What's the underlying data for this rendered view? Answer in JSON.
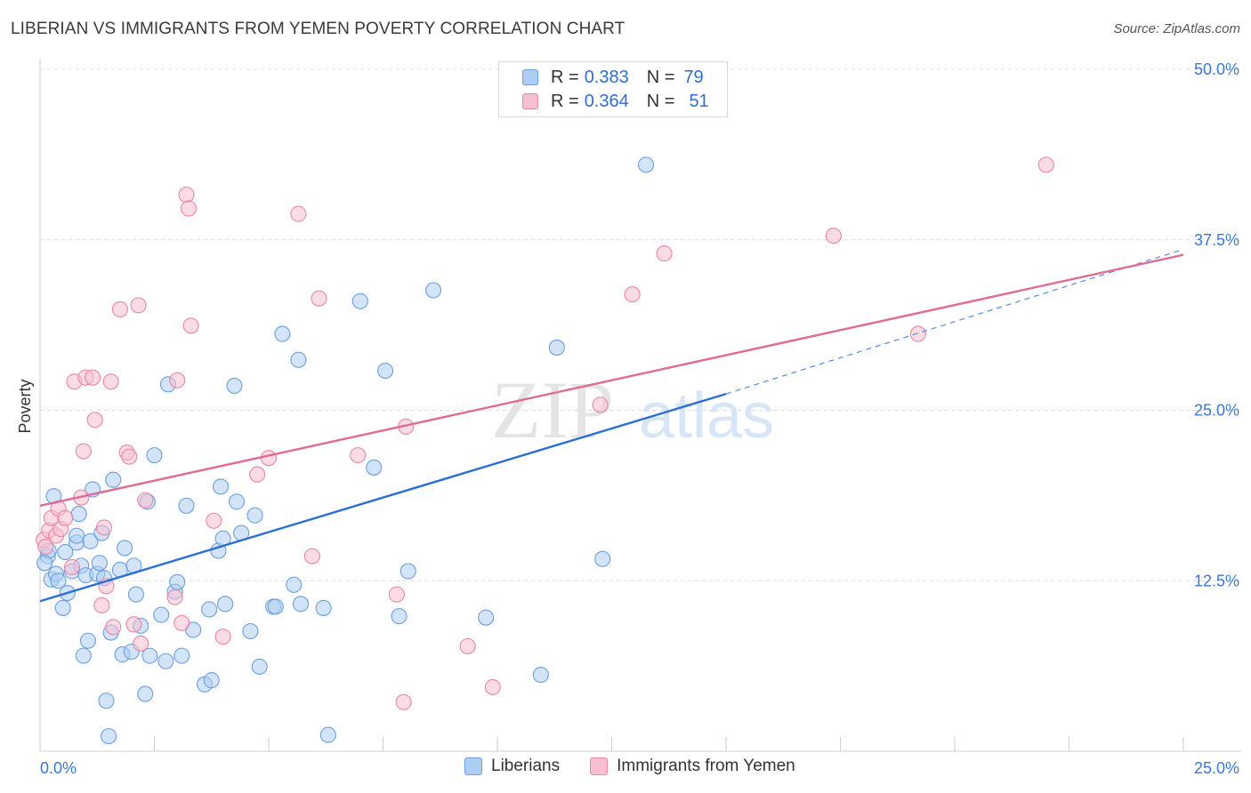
{
  "title": "LIBERIAN VS IMMIGRANTS FROM YEMEN POVERTY CORRELATION CHART",
  "source": "Source: ZipAtlas.com",
  "watermark": {
    "zip": "ZIP",
    "atlas": "atlas"
  },
  "legend_top": [
    {
      "r_label": "R =",
      "r_value": "0.383",
      "n_label": "N =",
      "n_value": "79"
    },
    {
      "r_label": "R =",
      "r_value": "0.364",
      "n_label": "N =",
      "n_value": "51"
    }
  ],
  "legend_bottom": [
    {
      "label": "Liberians"
    },
    {
      "label": "Immigrants from Yemen"
    }
  ],
  "colors": {
    "blue_fill": "#aecdf3",
    "blue_stroke": "#6a9fe0",
    "blue_line": "#2a6fd1",
    "pink_fill": "#f7bfd0",
    "pink_stroke": "#e886a6",
    "pink_line": "#e06a93",
    "tick_label": "#3b78d4",
    "grid": "#dcdcdc"
  },
  "chart_data": {
    "type": "scatter",
    "ylabel": "Poverty",
    "xlim": [
      0,
      25
    ],
    "ylim": [
      0,
      50
    ],
    "x_tick_labels": [
      {
        "value": 0,
        "label": "0.0%"
      },
      {
        "value": 25,
        "label": "25.0%"
      }
    ],
    "y_tick_labels": [
      {
        "value": 12.5,
        "label": "12.5%"
      },
      {
        "value": 25,
        "label": "25.0%"
      },
      {
        "value": 37.5,
        "label": "37.5%"
      },
      {
        "value": 50,
        "label": "50.0%"
      }
    ],
    "series": [
      {
        "name": "Liberians",
        "trend": {
          "x0": 0,
          "y0": 11.0,
          "x1": 15.0,
          "y1": 26.2,
          "dash_x1": 25.0,
          "dash_y1": 36.8
        },
        "points": [
          [
            0.17,
            14.3
          ],
          [
            0.19,
            14.7
          ],
          [
            0.25,
            12.6
          ],
          [
            0.3,
            18.7
          ],
          [
            0.35,
            13.0
          ],
          [
            0.4,
            12.5
          ],
          [
            0.5,
            10.5
          ],
          [
            0.55,
            14.6
          ],
          [
            0.6,
            11.6
          ],
          [
            0.7,
            13.2
          ],
          [
            0.8,
            15.3
          ],
          [
            0.8,
            15.8
          ],
          [
            0.85,
            17.4
          ],
          [
            0.9,
            13.6
          ],
          [
            0.95,
            7.0
          ],
          [
            1.0,
            12.9
          ],
          [
            1.05,
            8.1
          ],
          [
            1.1,
            15.4
          ],
          [
            1.15,
            19.2
          ],
          [
            1.25,
            13.0
          ],
          [
            1.3,
            13.8
          ],
          [
            1.35,
            16.0
          ],
          [
            1.4,
            12.7
          ],
          [
            1.45,
            3.7
          ],
          [
            1.5,
            1.1
          ],
          [
            1.55,
            8.7
          ],
          [
            1.6,
            19.9
          ],
          [
            1.75,
            13.3
          ],
          [
            1.8,
            7.1
          ],
          [
            1.85,
            14.9
          ],
          [
            2.0,
            7.3
          ],
          [
            2.05,
            13.6
          ],
          [
            2.1,
            11.5
          ],
          [
            2.2,
            9.2
          ],
          [
            2.35,
            18.3
          ],
          [
            2.4,
            7.0
          ],
          [
            2.5,
            21.7
          ],
          [
            2.65,
            10.0
          ],
          [
            2.75,
            6.6
          ],
          [
            2.8,
            26.9
          ],
          [
            2.95,
            11.7
          ],
          [
            3.0,
            12.4
          ],
          [
            3.1,
            7.0
          ],
          [
            3.2,
            18.0
          ],
          [
            3.35,
            8.9
          ],
          [
            3.6,
            4.9
          ],
          [
            3.7,
            10.4
          ],
          [
            3.75,
            5.2
          ],
          [
            3.9,
            14.7
          ],
          [
            3.95,
            19.4
          ],
          [
            4.0,
            15.6
          ],
          [
            4.05,
            10.8
          ],
          [
            4.25,
            26.8
          ],
          [
            4.3,
            18.3
          ],
          [
            4.4,
            16.0
          ],
          [
            4.6,
            8.8
          ],
          [
            4.7,
            17.3
          ],
          [
            4.8,
            6.2
          ],
          [
            5.1,
            10.6
          ],
          [
            5.15,
            10.6
          ],
          [
            5.3,
            30.6
          ],
          [
            5.55,
            12.2
          ],
          [
            5.65,
            28.7
          ],
          [
            5.7,
            10.8
          ],
          [
            6.3,
            1.2
          ],
          [
            7.0,
            33.0
          ],
          [
            7.3,
            20.8
          ],
          [
            7.55,
            27.9
          ],
          [
            7.85,
            9.9
          ],
          [
            8.05,
            13.2
          ],
          [
            8.6,
            33.8
          ],
          [
            9.75,
            9.8
          ],
          [
            10.95,
            5.6
          ],
          [
            11.3,
            29.6
          ],
          [
            13.25,
            43.0
          ],
          [
            12.3,
            14.1
          ],
          [
            6.2,
            10.5
          ],
          [
            2.3,
            4.2
          ],
          [
            0.1,
            13.8
          ]
        ]
      },
      {
        "name": "Immigrants from Yemen",
        "trend": {
          "x0": 0,
          "y0": 18.0,
          "x1": 25.0,
          "y1": 36.4
        },
        "points": [
          [
            0.08,
            15.5
          ],
          [
            0.12,
            15.0
          ],
          [
            0.2,
            16.2
          ],
          [
            0.25,
            17.1
          ],
          [
            0.35,
            15.8
          ],
          [
            0.4,
            17.8
          ],
          [
            0.45,
            16.3
          ],
          [
            0.55,
            17.1
          ],
          [
            0.7,
            13.5
          ],
          [
            0.75,
            27.1
          ],
          [
            0.9,
            18.6
          ],
          [
            0.95,
            22.0
          ],
          [
            1.0,
            27.4
          ],
          [
            1.15,
            27.4
          ],
          [
            1.2,
            24.3
          ],
          [
            1.35,
            10.7
          ],
          [
            1.4,
            16.4
          ],
          [
            1.45,
            12.1
          ],
          [
            1.55,
            27.1
          ],
          [
            1.6,
            9.1
          ],
          [
            1.75,
            32.4
          ],
          [
            1.9,
            21.9
          ],
          [
            1.95,
            21.6
          ],
          [
            2.05,
            9.3
          ],
          [
            2.15,
            32.7
          ],
          [
            2.2,
            7.9
          ],
          [
            2.3,
            18.4
          ],
          [
            2.95,
            11.3
          ],
          [
            3.0,
            27.2
          ],
          [
            3.1,
            9.4
          ],
          [
            3.2,
            40.8
          ],
          [
            3.25,
            39.8
          ],
          [
            3.3,
            31.2
          ],
          [
            3.8,
            16.9
          ],
          [
            4.0,
            8.4
          ],
          [
            4.75,
            20.3
          ],
          [
            5.0,
            21.5
          ],
          [
            5.65,
            39.4
          ],
          [
            5.95,
            14.3
          ],
          [
            6.1,
            33.2
          ],
          [
            6.95,
            21.7
          ],
          [
            7.8,
            11.5
          ],
          [
            7.95,
            3.6
          ],
          [
            8.0,
            23.8
          ],
          [
            9.35,
            7.7
          ],
          [
            9.9,
            4.7
          ],
          [
            12.25,
            25.4
          ],
          [
            12.95,
            33.5
          ],
          [
            13.65,
            36.5
          ],
          [
            17.35,
            37.8
          ],
          [
            19.2,
            30.6
          ],
          [
            22.0,
            43.0
          ]
        ]
      }
    ]
  }
}
